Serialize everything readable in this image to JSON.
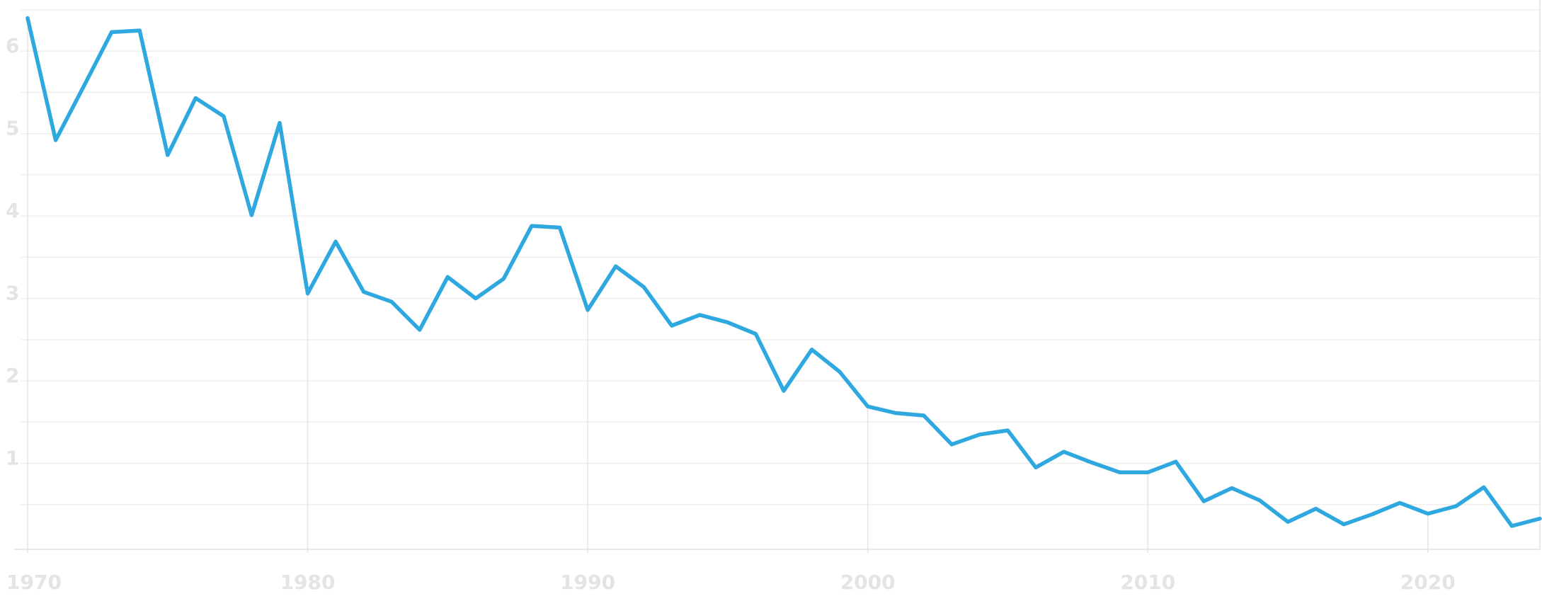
{
  "chart_data": {
    "type": "line",
    "x": [
      1970,
      1971,
      1972,
      1973,
      1974,
      1975,
      1976,
      1977,
      1978,
      1979,
      1980,
      1981,
      1982,
      1983,
      1984,
      1985,
      1986,
      1987,
      1988,
      1989,
      1990,
      1991,
      1992,
      1993,
      1994,
      1995,
      1996,
      1997,
      1998,
      1999,
      2000,
      2001,
      2002,
      2003,
      2004,
      2005,
      2006,
      2007,
      2008,
      2009,
      2010,
      2011,
      2012,
      2013,
      2014,
      2015,
      2016,
      2017,
      2018,
      2019,
      2020,
      2021,
      2022,
      2023,
      2024
    ],
    "series": [
      {
        "color": "#2fa8e0",
        "values": [
          6.4,
          4.92,
          5.57,
          6.23,
          6.25,
          4.74,
          5.43,
          5.21,
          4.01,
          5.13,
          3.06,
          3.69,
          3.08,
          2.96,
          2.62,
          3.26,
          3.0,
          3.24,
          3.88,
          3.86,
          2.86,
          3.39,
          3.14,
          2.67,
          2.8,
          2.71,
          2.57,
          1.88,
          2.38,
          2.11,
          1.69,
          1.61,
          1.58,
          1.23,
          1.35,
          1.4,
          0.95,
          1.14,
          1.01,
          0.89,
          0.89,
          1.02,
          0.54,
          0.7,
          0.55,
          0.29,
          0.45,
          0.26,
          0.38,
          0.52,
          0.39,
          0.48,
          0.71,
          0.24,
          0.33
        ]
      }
    ],
    "xlim": [
      1970,
      2024
    ],
    "xticks": [
      1970,
      1980,
      1990,
      2000,
      2010,
      2020
    ],
    "ylim": [
      0,
      6.5
    ],
    "yticks": [
      1,
      2,
      3,
      4,
      5,
      6
    ],
    "ygrid": [
      0.5,
      1,
      1.5,
      2,
      2.5,
      3,
      3.5,
      4,
      4.5,
      5,
      5.5,
      6,
      6.5
    ],
    "grid": true
  }
}
